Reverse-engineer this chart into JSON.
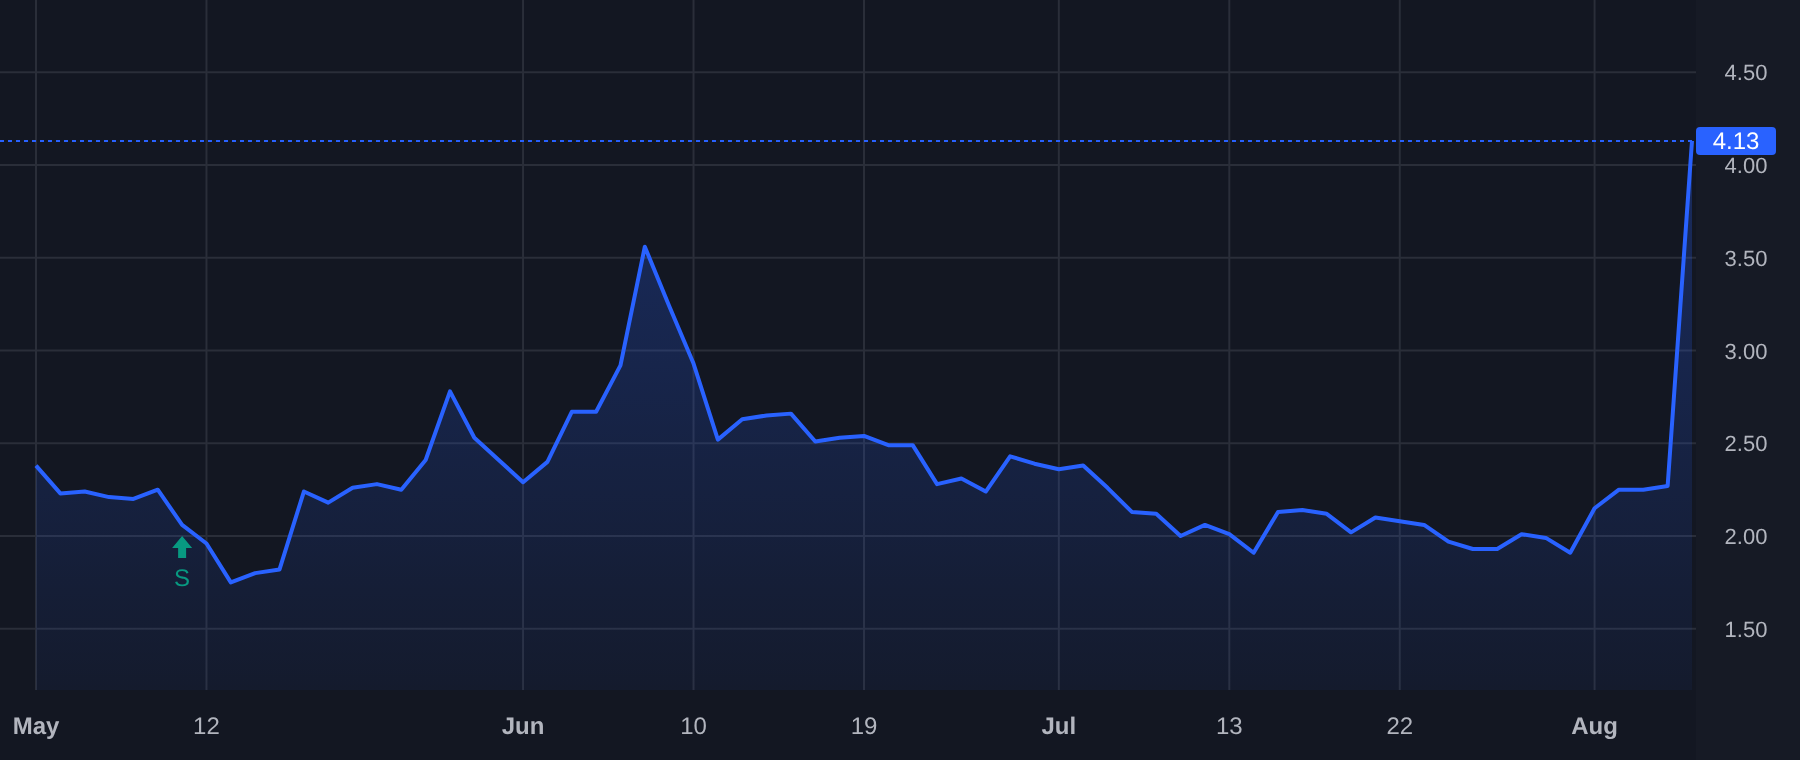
{
  "chart_data": {
    "type": "area",
    "categories": [
      "May",
      null,
      null,
      null,
      null,
      null,
      null,
      "12",
      null,
      null,
      null,
      null,
      null,
      null,
      null,
      null,
      null,
      null,
      null,
      null,
      "Jun",
      null,
      null,
      null,
      null,
      null,
      null,
      "10",
      null,
      null,
      null,
      null,
      null,
      null,
      "19",
      null,
      null,
      null,
      null,
      null,
      null,
      null,
      "Jul",
      null,
      null,
      null,
      null,
      null,
      null,
      "13",
      null,
      null,
      null,
      null,
      null,
      null,
      "22",
      null,
      null,
      null,
      null,
      null,
      null,
      null,
      "Aug",
      null,
      null,
      null,
      null
    ],
    "series": [
      {
        "color": "#2962ff",
        "values": [
          2.38,
          2.23,
          2.24,
          2.21,
          2.2,
          2.25,
          2.06,
          1.96,
          1.75,
          1.8,
          1.82,
          2.24,
          2.18,
          2.26,
          2.28,
          2.25,
          2.41,
          2.78,
          2.53,
          2.41,
          2.29,
          2.4,
          2.67,
          2.67,
          2.92,
          3.56,
          3.24,
          2.93,
          2.52,
          2.63,
          2.65,
          2.66,
          2.51,
          2.53,
          2.54,
          2.49,
          2.49,
          2.28,
          2.31,
          2.24,
          2.43,
          2.39,
          2.36,
          2.38,
          2.26,
          2.13,
          2.12,
          2.0,
          2.06,
          2.01,
          1.91,
          2.13,
          2.14,
          2.12,
          2.02,
          2.1,
          2.08,
          2.06,
          1.97,
          1.93,
          1.93,
          2.01,
          1.99,
          1.91,
          2.15,
          2.25,
          2.25,
          2.27,
          4.13
        ]
      }
    ],
    "ylim": [
      1.17,
      4.89
    ],
    "yticks": [
      {
        "value": 1.5,
        "label": "1.50"
      },
      {
        "value": 2,
        "label": "2.00"
      },
      {
        "value": 2.5,
        "label": "2.50"
      },
      {
        "value": 3,
        "label": "3.00"
      },
      {
        "value": 3.5,
        "label": "3.50"
      },
      {
        "value": 4,
        "label": "4.00"
      },
      {
        "value": 4.5,
        "label": "4.50"
      }
    ],
    "ref_lines": [
      {
        "axis": "y",
        "value": 4.13,
        "label": "4.13",
        "color": "#2962ff",
        "line_style": "dotted"
      }
    ],
    "annotations": [
      "S"
    ],
    "grid": true
  }
}
